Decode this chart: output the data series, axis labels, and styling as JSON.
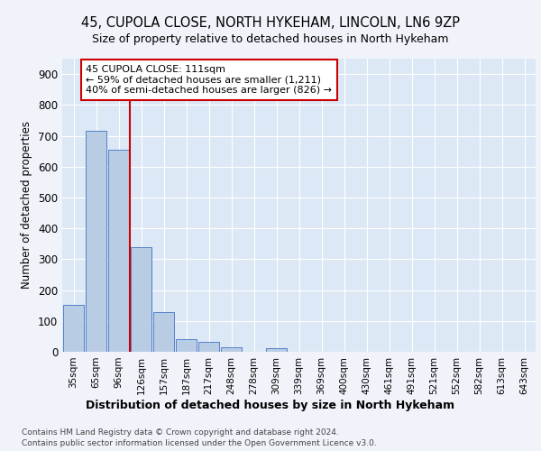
{
  "title_line1": "45, CUPOLA CLOSE, NORTH HYKEHAM, LINCOLN, LN6 9ZP",
  "title_line2": "Size of property relative to detached houses in North Hykeham",
  "xlabel": "Distribution of detached houses by size in North Hykeham",
  "ylabel": "Number of detached properties",
  "categories": [
    "35sqm",
    "65sqm",
    "96sqm",
    "126sqm",
    "157sqm",
    "187sqm",
    "217sqm",
    "248sqm",
    "278sqm",
    "309sqm",
    "339sqm",
    "369sqm",
    "400sqm",
    "430sqm",
    "461sqm",
    "491sqm",
    "521sqm",
    "552sqm",
    "582sqm",
    "613sqm",
    "643sqm"
  ],
  "values": [
    152,
    715,
    655,
    340,
    130,
    42,
    32,
    14,
    0,
    12,
    0,
    0,
    0,
    0,
    0,
    0,
    0,
    0,
    0,
    0,
    0
  ],
  "bar_color": "#b8cce4",
  "bar_edge_color": "#4472c4",
  "vline_color": "#cc0000",
  "annotation_text": "45 CUPOLA CLOSE: 111sqm\n← 59% of detached houses are smaller (1,211)\n40% of semi-detached houses are larger (826) →",
  "annotation_box_color": "#cc0000",
  "ylim": [
    0,
    950
  ],
  "yticks": [
    0,
    100,
    200,
    300,
    400,
    500,
    600,
    700,
    800,
    900
  ],
  "footer_line1": "Contains HM Land Registry data © Crown copyright and database right 2024.",
  "footer_line2": "Contains public sector information licensed under the Open Government Licence v3.0.",
  "background_color": "#f0f4fa",
  "plot_bg_color": "#dce8f5"
}
